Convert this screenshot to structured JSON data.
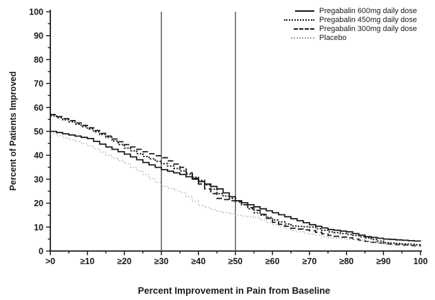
{
  "chart_data": {
    "type": "line",
    "style": "step-cdf",
    "title": "",
    "xlabel": "Percent Improvement in Pain from Baseline",
    "ylabel": "Percent of Patients Improved",
    "xlim": [
      0,
      100
    ],
    "ylim": [
      0,
      100
    ],
    "grid": false,
    "legend_position": "top-right",
    "x_tick_values": [
      0,
      10,
      20,
      30,
      40,
      50,
      60,
      70,
      80,
      90,
      100
    ],
    "x_tick_labels": [
      ">0",
      "≥10",
      "≥20",
      "≥30",
      "≥40",
      "≥50",
      "≥60",
      "≥70",
      "≥80",
      "≥90",
      "100"
    ],
    "y_tick_values": [
      0,
      10,
      20,
      30,
      40,
      50,
      60,
      70,
      80,
      90,
      100
    ],
    "minor_tick_step": 5,
    "reference_lines_x": [
      30,
      50
    ],
    "x": [
      0,
      5,
      10,
      15,
      20,
      25,
      30,
      35,
      40,
      45,
      50,
      55,
      60,
      65,
      70,
      75,
      80,
      85,
      90,
      95,
      100
    ],
    "series": [
      {
        "name": "Pregabalin 600mg daily dose",
        "color": "#1a1a1a",
        "line_style": "solid",
        "width": 1.8,
        "values": [
          50,
          48.5,
          47,
          43.5,
          40.5,
          37,
          34,
          32,
          29,
          26,
          21,
          18.5,
          16,
          13.5,
          11,
          9,
          8,
          6,
          5,
          4.5,
          4
        ]
      },
      {
        "name": "Pregabalin 450mg daily dose",
        "color": "#1a1a1a",
        "line_style": "dense-dots",
        "width": 2,
        "values": [
          56.5,
          54,
          51,
          47.5,
          43,
          39.5,
          36.5,
          33.5,
          29.5,
          24,
          21,
          16,
          13,
          10.5,
          10,
          8,
          7,
          5.5,
          3.5,
          3,
          2.5
        ]
      },
      {
        "name": "Pregabalin 300mg daily dose",
        "color": "#1a1a1a",
        "line_style": "dashes",
        "width": 1.8,
        "values": [
          57,
          54.5,
          51.5,
          48,
          44.5,
          41.5,
          39,
          35,
          28,
          22,
          20.5,
          17,
          12,
          9.5,
          8.5,
          6.5,
          5.5,
          4,
          3,
          2.5,
          2
        ]
      },
      {
        "name": "Placebo",
        "color": "#999999",
        "line_style": "fine-dots",
        "width": 1.3,
        "values": [
          49,
          46.5,
          44,
          40,
          36.5,
          32,
          27,
          24.5,
          19,
          16.5,
          15,
          14,
          11,
          8.5,
          7,
          5.5,
          5,
          4,
          3,
          2.5,
          2
        ]
      }
    ],
    "colors": {
      "axis": "#1a1a1a",
      "tick_label": "#1a1a1a",
      "reference_line": "#4d4d4d"
    }
  }
}
